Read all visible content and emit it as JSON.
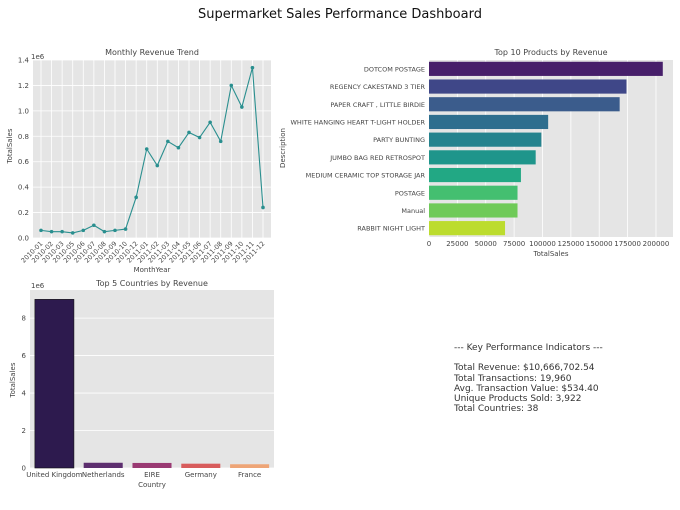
{
  "page_title": "Supermarket Sales Performance Dashboard",
  "colors": {
    "panel_bg": "#e5e5e5",
    "grid": "#ffffff",
    "line": "#2a8f8f",
    "viridis": [
      "#471f6a",
      "#3f4788",
      "#3b5c8c",
      "#2e6e8e",
      "#25838e",
      "#1f958b",
      "#22a884",
      "#44bf70",
      "#6fca58",
      "#bcdc2e"
    ],
    "magma": [
      "#2d1a4e",
      "#5d2f6f",
      "#9a3a73",
      "#d85c5c",
      "#eea577"
    ]
  },
  "kpi": {
    "heading": "--- Key Performance Indicators ---",
    "lines": [
      "Total Revenue: $10,666,702.54",
      "Total Transactions: 19,960",
      "Avg. Transaction Value: $534.40",
      "Unique Products Sold: 3,922",
      "Total Countries: 38"
    ]
  },
  "chart_data": [
    {
      "type": "line",
      "title": "Monthly Revenue Trend",
      "xlabel": "MonthYear",
      "ylabel": "TotalSales",
      "offset_label": "1e6",
      "ylim": [
        0,
        1.4
      ],
      "yticks": [
        "0.0",
        "0.2",
        "0.4",
        "0.6",
        "0.8",
        "1.0",
        "1.2",
        "1.4"
      ],
      "x": [
        "2010-01",
        "2010-02",
        "2010-03",
        "2010-05",
        "2010-06",
        "2010-07",
        "2010-08",
        "2010-09",
        "2010-10",
        "2010-12",
        "2011-01",
        "2011-02",
        "2011-03",
        "2011-04",
        "2011-05",
        "2011-06",
        "2011-07",
        "2011-08",
        "2011-09",
        "2011-10",
        "2011-11",
        "2011-12"
      ],
      "values": [
        0.06,
        0.05,
        0.05,
        0.04,
        0.06,
        0.1,
        0.05,
        0.06,
        0.07,
        0.32,
        0.7,
        0.57,
        0.76,
        0.71,
        0.83,
        0.79,
        0.91,
        0.76,
        1.2,
        1.03,
        1.34,
        0.24
      ]
    },
    {
      "type": "bar",
      "orientation": "horizontal",
      "title": "Top 10 Products by Revenue",
      "xlabel": "TotalSales",
      "ylabel": "Description",
      "xlim": [
        0,
        215000
      ],
      "xticks": [
        "0",
        "25000",
        "50000",
        "75000",
        "100000",
        "125000",
        "150000",
        "175000",
        "200000"
      ],
      "categories": [
        "DOTCOM POSTAGE",
        "REGENCY CAKESTAND 3 TIER",
        "PAPER CRAFT , LITTLE BIRDIE",
        "WHITE HANGING HEART T-LIGHT HOLDER",
        "PARTY BUNTING",
        "JUMBO BAG RED RETROSPOT",
        "MEDIUM CERAMIC TOP STORAGE JAR",
        "POSTAGE",
        "Manual",
        "RABBIT NIGHT LIGHT"
      ],
      "values": [
        206000,
        174000,
        168000,
        105000,
        99000,
        94000,
        81000,
        78000,
        78000,
        67000
      ]
    },
    {
      "type": "bar",
      "title": "Top 5 Countries by Revenue",
      "xlabel": "Country",
      "ylabel": "TotalSales",
      "offset_label": "1e6",
      "ylim": [
        0,
        9.5
      ],
      "yticks": [
        "0",
        "2",
        "4",
        "6",
        "8"
      ],
      "categories": [
        "United Kingdom",
        "Netherlands",
        "EIRE",
        "Germany",
        "France"
      ],
      "values": [
        9.0,
        0.28,
        0.27,
        0.23,
        0.2
      ]
    }
  ]
}
